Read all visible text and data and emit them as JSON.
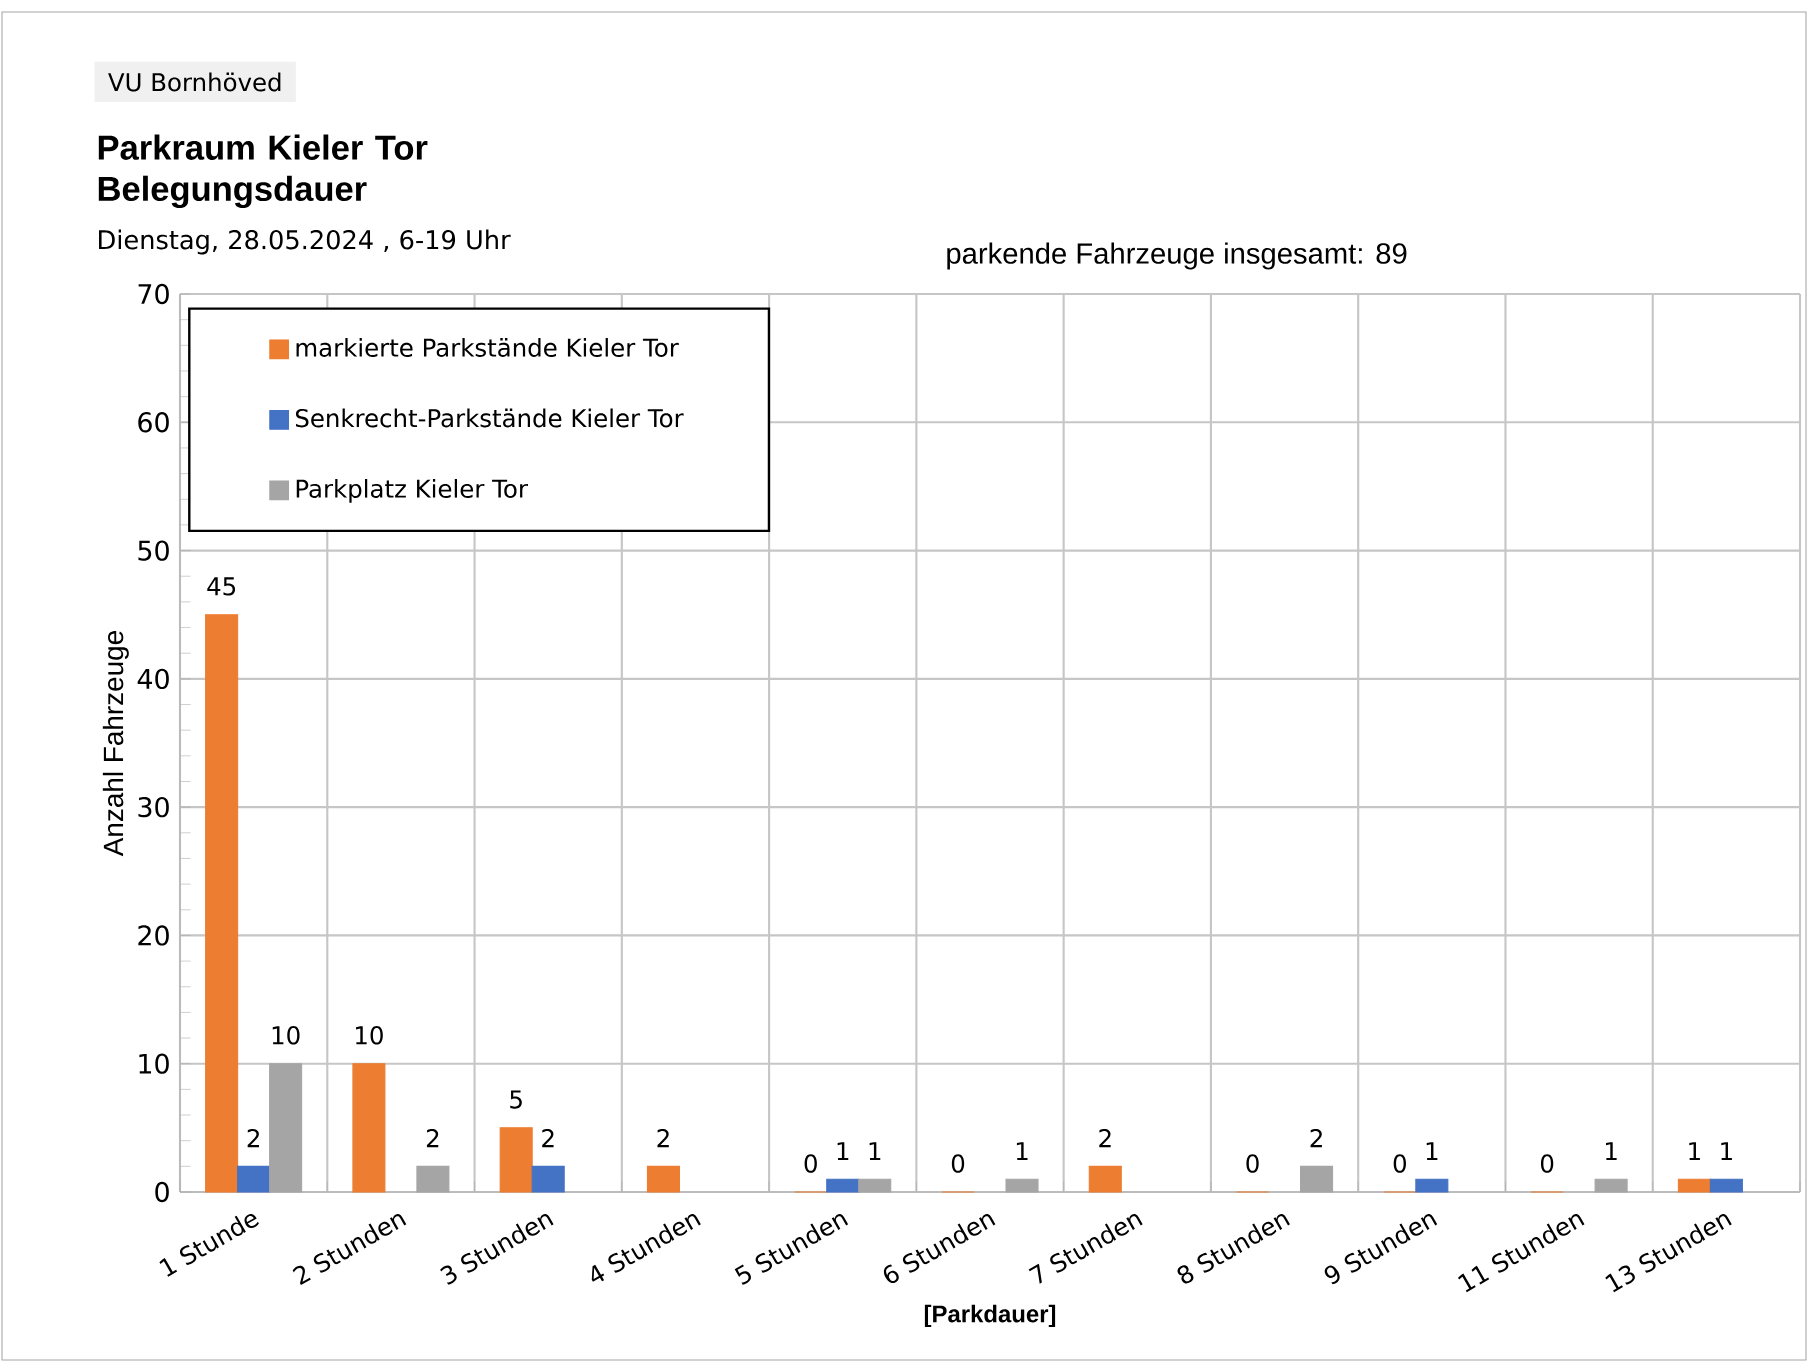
{
  "chart_data": {
    "type": "bar",
    "title": "Parkraum Kieler Tor Belegungsdauer",
    "subtitle": "Dienstag, 28.05.2024  , 6-19 Uhr",
    "annotations": [
      "VU Bornhöved",
      "parkende Fahrzeuge insgesamt:   89"
    ],
    "xlabel": "[Parkdauer]",
    "ylabel": "Anzahl Fahrzeuge",
    "categories": [
      "1 Stunde",
      "2 Stunden",
      "3 Stunden",
      "4 Stunden",
      "5 Stunden",
      "6 Stunden",
      "7 Stunden",
      "8 Stunden",
      "9 Stunden",
      "11 Stunden",
      "13 Stunden"
    ],
    "series": [
      {
        "name": "markierte Parkstände Kieler Tor",
        "color": "#ed7d31",
        "values": [
          45,
          10,
          5,
          2,
          0,
          0,
          2,
          0,
          0,
          0,
          1
        ],
        "value_labels": [
          "45",
          "10",
          "5",
          "2",
          "0",
          "0",
          "2",
          "0",
          "0",
          "0",
          "1"
        ]
      },
      {
        "name": "Senkrecht-Parkstände Kieler Tor",
        "color": "#4472c4",
        "values": [
          2,
          null,
          2,
          null,
          1,
          null,
          null,
          null,
          1,
          null,
          1
        ],
        "value_labels": [
          "2",
          null,
          "2",
          null,
          "1",
          null,
          null,
          null,
          "1",
          null,
          "1"
        ]
      },
      {
        "name": "Parkplatz Kieler Tor",
        "color": "#a5a5a5",
        "values": [
          10,
          2,
          null,
          null,
          1,
          1,
          null,
          2,
          null,
          1,
          null
        ],
        "value_labels": [
          "10",
          "2",
          null,
          null,
          "1",
          "1",
          null,
          "2",
          null,
          "1",
          null
        ]
      }
    ],
    "ylim": [
      0,
      70
    ],
    "yticks": [
      0,
      10,
      20,
      30,
      40,
      50,
      60,
      70
    ],
    "grid": true,
    "legend": "top left"
  }
}
